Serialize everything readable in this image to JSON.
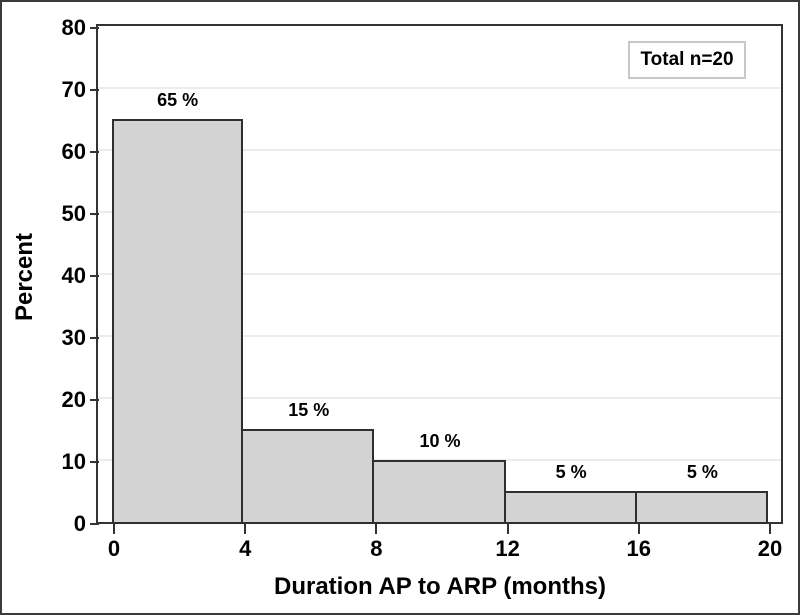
{
  "chart_data": {
    "type": "bar",
    "subtype": "histogram",
    "title": "",
    "xlabel": "Duration AP to ARP (months)",
    "ylabel": "Percent",
    "legend_label": "Total n=20",
    "legend_position": "top-right",
    "bin_edges": [
      0,
      4,
      8,
      12,
      16,
      20
    ],
    "values": [
      65,
      15,
      10,
      5,
      5
    ],
    "bar_labels": [
      "65 %",
      "15 %",
      "10 %",
      "5 %",
      "5 %"
    ],
    "xticks": [
      0,
      4,
      8,
      12,
      16,
      20
    ],
    "yticks": [
      0,
      10,
      20,
      30,
      40,
      50,
      60,
      70,
      80
    ],
    "xlim": [
      0,
      20
    ],
    "ylim": [
      0,
      80
    ],
    "grid": "horizontal",
    "colors": {
      "bar_fill": "#d3d3d3",
      "bar_border": "#2f2f2f",
      "axis": "#333333",
      "gridline": "#ececec",
      "legend_border": "#c8c8c8",
      "text": "#000000",
      "background": "#ffffff"
    }
  }
}
